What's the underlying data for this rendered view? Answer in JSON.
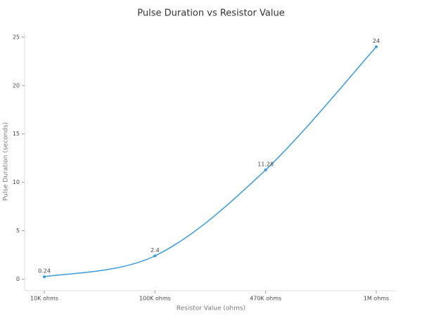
{
  "chart_data": {
    "type": "line",
    "title": "Pulse Duration vs Resistor Value",
    "x_label": "Resistor Value (ohms)",
    "y_label": "Pulse Duration (seconds)",
    "categories": [
      "10K ohms",
      "100K ohms",
      "470K ohms",
      "1M ohms"
    ],
    "values": [
      0.24,
      2.4,
      11.28,
      24
    ],
    "color": "#3a9ad9",
    "ylim": [
      -1.2,
      25.5
    ],
    "yticks": [
      0,
      5,
      10,
      15,
      20,
      25
    ]
  }
}
